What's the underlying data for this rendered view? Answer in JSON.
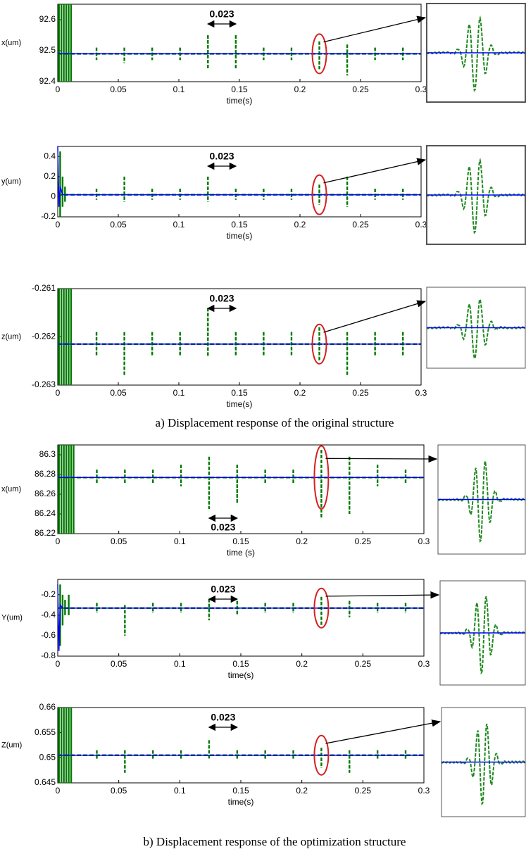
{
  "chart_data": [
    {
      "type": "spike-line",
      "ylabel": "x(um)",
      "xlabel": "time(s)",
      "annotation": "0.023",
      "xlim": [
        0,
        0.3
      ],
      "xticks": [
        0,
        0.05,
        0.1,
        0.15,
        0.2,
        0.25,
        0.3
      ],
      "ylim": [
        92.4,
        92.65
      ],
      "yticks": [
        92.4,
        92.5,
        92.6
      ],
      "series": [
        {
          "color": "#0000ff",
          "x": [
            0,
            0.3
          ],
          "values": [
            92.49,
            92.49
          ]
        },
        {
          "color": "#007a00",
          "x": [
            0.001,
            0.003,
            0.005,
            0.007,
            0.009,
            0.011,
            0.032,
            0.055,
            0.078,
            0.101,
            0.124,
            0.147,
            0.17,
            0.193,
            0.216,
            0.239,
            0.262,
            0.285
          ],
          "high": [
            92.65,
            92.65,
            92.65,
            92.65,
            92.65,
            92.65,
            92.51,
            92.51,
            92.51,
            92.51,
            92.55,
            92.55,
            92.51,
            92.51,
            92.53,
            92.52,
            92.51,
            92.51
          ],
          "low": [
            92.4,
            92.4,
            92.4,
            92.4,
            92.4,
            92.4,
            92.47,
            92.46,
            92.47,
            92.47,
            92.44,
            92.44,
            92.47,
            92.47,
            92.44,
            92.42,
            92.47,
            92.47
          ]
        }
      ]
    },
    {
      "type": "spike-line",
      "ylabel": "y(um)",
      "xlabel": "time(s)",
      "annotation": "0.023",
      "xlim": [
        0,
        0.3
      ],
      "xticks": [
        0,
        0.05,
        0.1,
        0.15,
        0.2,
        0.25,
        0.3
      ],
      "ylim": [
        -0.2,
        0.5
      ],
      "yticks": [
        -0.2,
        0,
        0.2,
        0.4
      ],
      "series": [
        {
          "color": "#0000ff",
          "x": [
            0,
            0.001,
            0.002,
            0.004,
            0.3
          ],
          "values": [
            0.5,
            -0.1,
            0.1,
            0.02,
            0.02
          ]
        },
        {
          "color": "#007a00",
          "x": [
            0.002,
            0.004,
            0.006,
            0.032,
            0.055,
            0.078,
            0.101,
            0.124,
            0.147,
            0.17,
            0.193,
            0.216,
            0.239,
            0.262,
            0.285
          ],
          "high": [
            0.45,
            0.2,
            0.1,
            0.08,
            0.2,
            0.08,
            0.08,
            0.2,
            0.08,
            0.08,
            0.08,
            0.12,
            0.2,
            0.08,
            0.08
          ],
          "low": [
            -0.2,
            -0.1,
            -0.05,
            -0.03,
            -0.05,
            -0.03,
            -0.03,
            -0.05,
            -0.03,
            -0.03,
            -0.03,
            -0.08,
            -0.1,
            -0.03,
            -0.03
          ]
        }
      ]
    },
    {
      "type": "spike-line",
      "ylabel": "z(um)",
      "xlabel": "time(s)",
      "annotation": "0.023",
      "xlim": [
        0,
        0.3
      ],
      "xticks": [
        0,
        0.05,
        0.1,
        0.15,
        0.2,
        0.25,
        0.3
      ],
      "ylim": [
        -0.263,
        -0.261
      ],
      "yticks": [
        -0.263,
        -0.262,
        -0.261
      ],
      "series": [
        {
          "color": "#0000ff",
          "x": [
            0,
            0.3
          ],
          "values": [
            -0.26215,
            -0.26215
          ]
        },
        {
          "color": "#007a00",
          "x": [
            0.001,
            0.003,
            0.005,
            0.007,
            0.009,
            0.011,
            0.032,
            0.055,
            0.078,
            0.101,
            0.124,
            0.147,
            0.17,
            0.193,
            0.216,
            0.239,
            0.262,
            0.285
          ],
          "high": [
            -0.261,
            -0.261,
            -0.261,
            -0.261,
            -0.261,
            -0.261,
            -0.2619,
            -0.2619,
            -0.2619,
            -0.2619,
            -0.2614,
            -0.2619,
            -0.2619,
            -0.2619,
            -0.2618,
            -0.2619,
            -0.2619,
            -0.2619
          ],
          "low": [
            -0.263,
            -0.263,
            -0.263,
            -0.263,
            -0.263,
            -0.263,
            -0.2624,
            -0.2628,
            -0.2624,
            -0.2624,
            -0.2624,
            -0.2624,
            -0.2624,
            -0.2624,
            -0.2625,
            -0.2628,
            -0.2624,
            -0.2624
          ]
        }
      ]
    },
    {
      "type": "spike-line",
      "ylabel": "x(um)",
      "xlabel": "time (s)",
      "annotation": "0.023",
      "xlim": [
        0,
        0.3
      ],
      "xticks": [
        0,
        0.05,
        0.1,
        0.15,
        0.2,
        0.25,
        0.3
      ],
      "ylim": [
        86.22,
        86.31
      ],
      "yticks": [
        86.22,
        86.24,
        86.26,
        86.28,
        86.3
      ],
      "series": [
        {
          "color": "#0000ff",
          "x": [
            0,
            0.3
          ],
          "values": [
            86.277,
            86.277
          ]
        },
        {
          "color": "#007a00",
          "x": [
            0.001,
            0.003,
            0.005,
            0.007,
            0.009,
            0.011,
            0.013,
            0.032,
            0.055,
            0.078,
            0.101,
            0.124,
            0.147,
            0.17,
            0.193,
            0.216,
            0.239,
            0.262,
            0.285
          ],
          "high": [
            86.31,
            86.31,
            86.31,
            86.31,
            86.31,
            86.31,
            86.31,
            86.285,
            86.285,
            86.285,
            86.29,
            86.298,
            86.29,
            86.285,
            86.285,
            86.305,
            86.298,
            86.29,
            86.285
          ],
          "low": [
            86.22,
            86.22,
            86.22,
            86.22,
            86.22,
            86.22,
            86.22,
            86.27,
            86.27,
            86.27,
            86.268,
            86.245,
            86.25,
            86.27,
            86.27,
            86.235,
            86.24,
            86.268,
            86.27
          ]
        }
      ]
    },
    {
      "type": "spike-line",
      "ylabel": "Y(um)",
      "xlabel": "time(s)",
      "annotation": "0.023",
      "xlim": [
        0,
        0.3
      ],
      "xticks": [
        0,
        0.05,
        0.1,
        0.15,
        0.2,
        0.25,
        0.3
      ],
      "ylim": [
        -0.8,
        -0.05
      ],
      "yticks": [
        -0.8,
        -0.6,
        -0.4,
        -0.2
      ],
      "series": [
        {
          "color": "#0000ff",
          "x": [
            0,
            0.001,
            0.002,
            0.004,
            0.3
          ],
          "values": [
            -0.1,
            -0.75,
            -0.3,
            -0.33,
            -0.33
          ]
        },
        {
          "color": "#007a00",
          "x": [
            0.002,
            0.004,
            0.006,
            0.009,
            0.032,
            0.055,
            0.078,
            0.101,
            0.124,
            0.147,
            0.17,
            0.193,
            0.216,
            0.239,
            0.262,
            0.285
          ],
          "high": [
            -0.1,
            -0.2,
            -0.25,
            -0.2,
            -0.28,
            -0.3,
            -0.28,
            -0.28,
            -0.24,
            -0.26,
            -0.28,
            -0.28,
            -0.22,
            -0.26,
            -0.28,
            -0.28
          ],
          "low": [
            -0.7,
            -0.5,
            -0.4,
            -0.4,
            -0.38,
            -0.6,
            -0.38,
            -0.38,
            -0.45,
            -0.4,
            -0.38,
            -0.38,
            -0.5,
            -0.42,
            -0.38,
            -0.38
          ]
        }
      ]
    },
    {
      "type": "spike-line",
      "ylabel": "Z(um)",
      "xlabel": "time(s)",
      "annotation": "0.023",
      "xlim": [
        0,
        0.3
      ],
      "xticks": [
        0,
        0.05,
        0.1,
        0.15,
        0.2,
        0.25,
        0.3
      ],
      "ylim": [
        0.645,
        0.66
      ],
      "yticks": [
        0.645,
        0.65,
        0.655,
        0.66
      ],
      "series": [
        {
          "color": "#0000ff",
          "x": [
            0,
            0.3
          ],
          "values": [
            0.6505,
            0.6505
          ]
        },
        {
          "color": "#007a00",
          "x": [
            0.001,
            0.003,
            0.005,
            0.007,
            0.009,
            0.011,
            0.032,
            0.055,
            0.078,
            0.101,
            0.124,
            0.147,
            0.17,
            0.193,
            0.216,
            0.239,
            0.262,
            0.285
          ],
          "high": [
            0.66,
            0.66,
            0.66,
            0.66,
            0.66,
            0.66,
            0.6515,
            0.6515,
            0.6515,
            0.6515,
            0.6535,
            0.6515,
            0.6515,
            0.6515,
            0.652,
            0.6515,
            0.6515,
            0.6515
          ],
          "low": [
            0.645,
            0.645,
            0.645,
            0.645,
            0.645,
            0.645,
            0.6497,
            0.647,
            0.6497,
            0.6497,
            0.6497,
            0.6497,
            0.6497,
            0.6497,
            0.648,
            0.647,
            0.6497,
            0.6497
          ]
        }
      ]
    }
  ],
  "captions": [
    "a) Displacement response of the original structure",
    "b) Displacement response of the optimization structure"
  ]
}
